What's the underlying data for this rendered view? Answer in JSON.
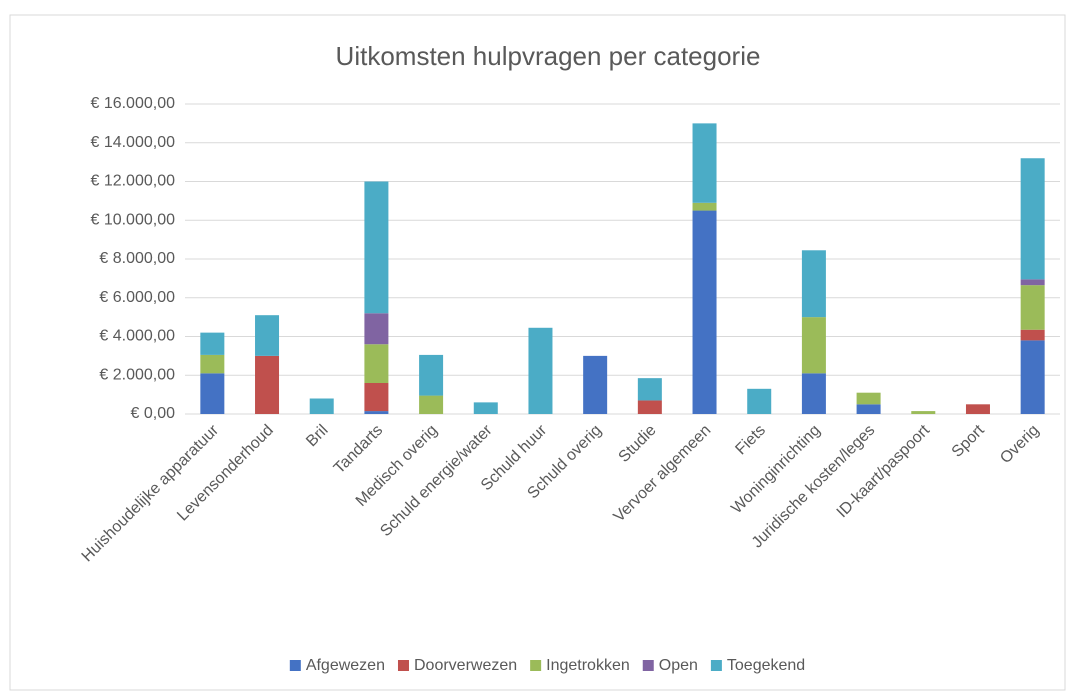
{
  "chart_data": {
    "type": "stacked_bar",
    "title": "Uitkomsten hulpvragen per categorie",
    "categories": [
      "Huishoudelijke apparatuur",
      "Levensonderhoud",
      "Bril",
      "Tandarts",
      "Medisch overig",
      "Schuld energie/water",
      "Schuld huur",
      "Schuld overig",
      "Studie",
      "Vervoer algemeen",
      "Fiets",
      "Woninginrichting",
      "Juridische kosten/leges",
      "ID-kaart/paspoort",
      "Sport",
      "Overig"
    ],
    "series": [
      {
        "name": "Afgewezen",
        "color": "#4472c4",
        "values": [
          2100,
          0,
          0,
          150,
          0,
          0,
          0,
          3000,
          0,
          10500,
          0,
          2100,
          500,
          0,
          0,
          3800
        ]
      },
      {
        "name": "Doorverwezen",
        "color": "#c0504d",
        "values": [
          0,
          3000,
          0,
          1450,
          0,
          0,
          0,
          0,
          700,
          0,
          0,
          0,
          0,
          0,
          500,
          550
        ]
      },
      {
        "name": "Ingetrokken",
        "color": "#9bbb59",
        "values": [
          950,
          0,
          0,
          2000,
          950,
          0,
          0,
          0,
          0,
          400,
          0,
          2900,
          600,
          150,
          0,
          2300
        ]
      },
      {
        "name": "Open",
        "color": "#8064a2",
        "values": [
          0,
          0,
          0,
          1600,
          0,
          0,
          0,
          0,
          0,
          0,
          0,
          0,
          0,
          0,
          0,
          300
        ]
      },
      {
        "name": "Toegekend",
        "color": "#4bacc6",
        "values": [
          1150,
          2100,
          800,
          6800,
          2100,
          600,
          4450,
          0,
          1150,
          4100,
          1300,
          3450,
          0,
          0,
          0,
          6250
        ]
      }
    ],
    "ylim": [
      0,
      16000
    ],
    "yticks": [
      {
        "value": 0,
        "label": "€ 0,00"
      },
      {
        "value": 2000,
        "label": "€ 2.000,00"
      },
      {
        "value": 4000,
        "label": "€ 4.000,00"
      },
      {
        "value": 6000,
        "label": "€ 6.000,00"
      },
      {
        "value": 8000,
        "label": "€ 8.000,00"
      },
      {
        "value": 10000,
        "label": "€ 10.000,00"
      },
      {
        "value": 12000,
        "label": "€ 12.000,00"
      },
      {
        "value": 14000,
        "label": "€ 14.000,00"
      },
      {
        "value": 16000,
        "label": "€ 16.000,00"
      }
    ],
    "grid": true,
    "legend": "bottom"
  }
}
